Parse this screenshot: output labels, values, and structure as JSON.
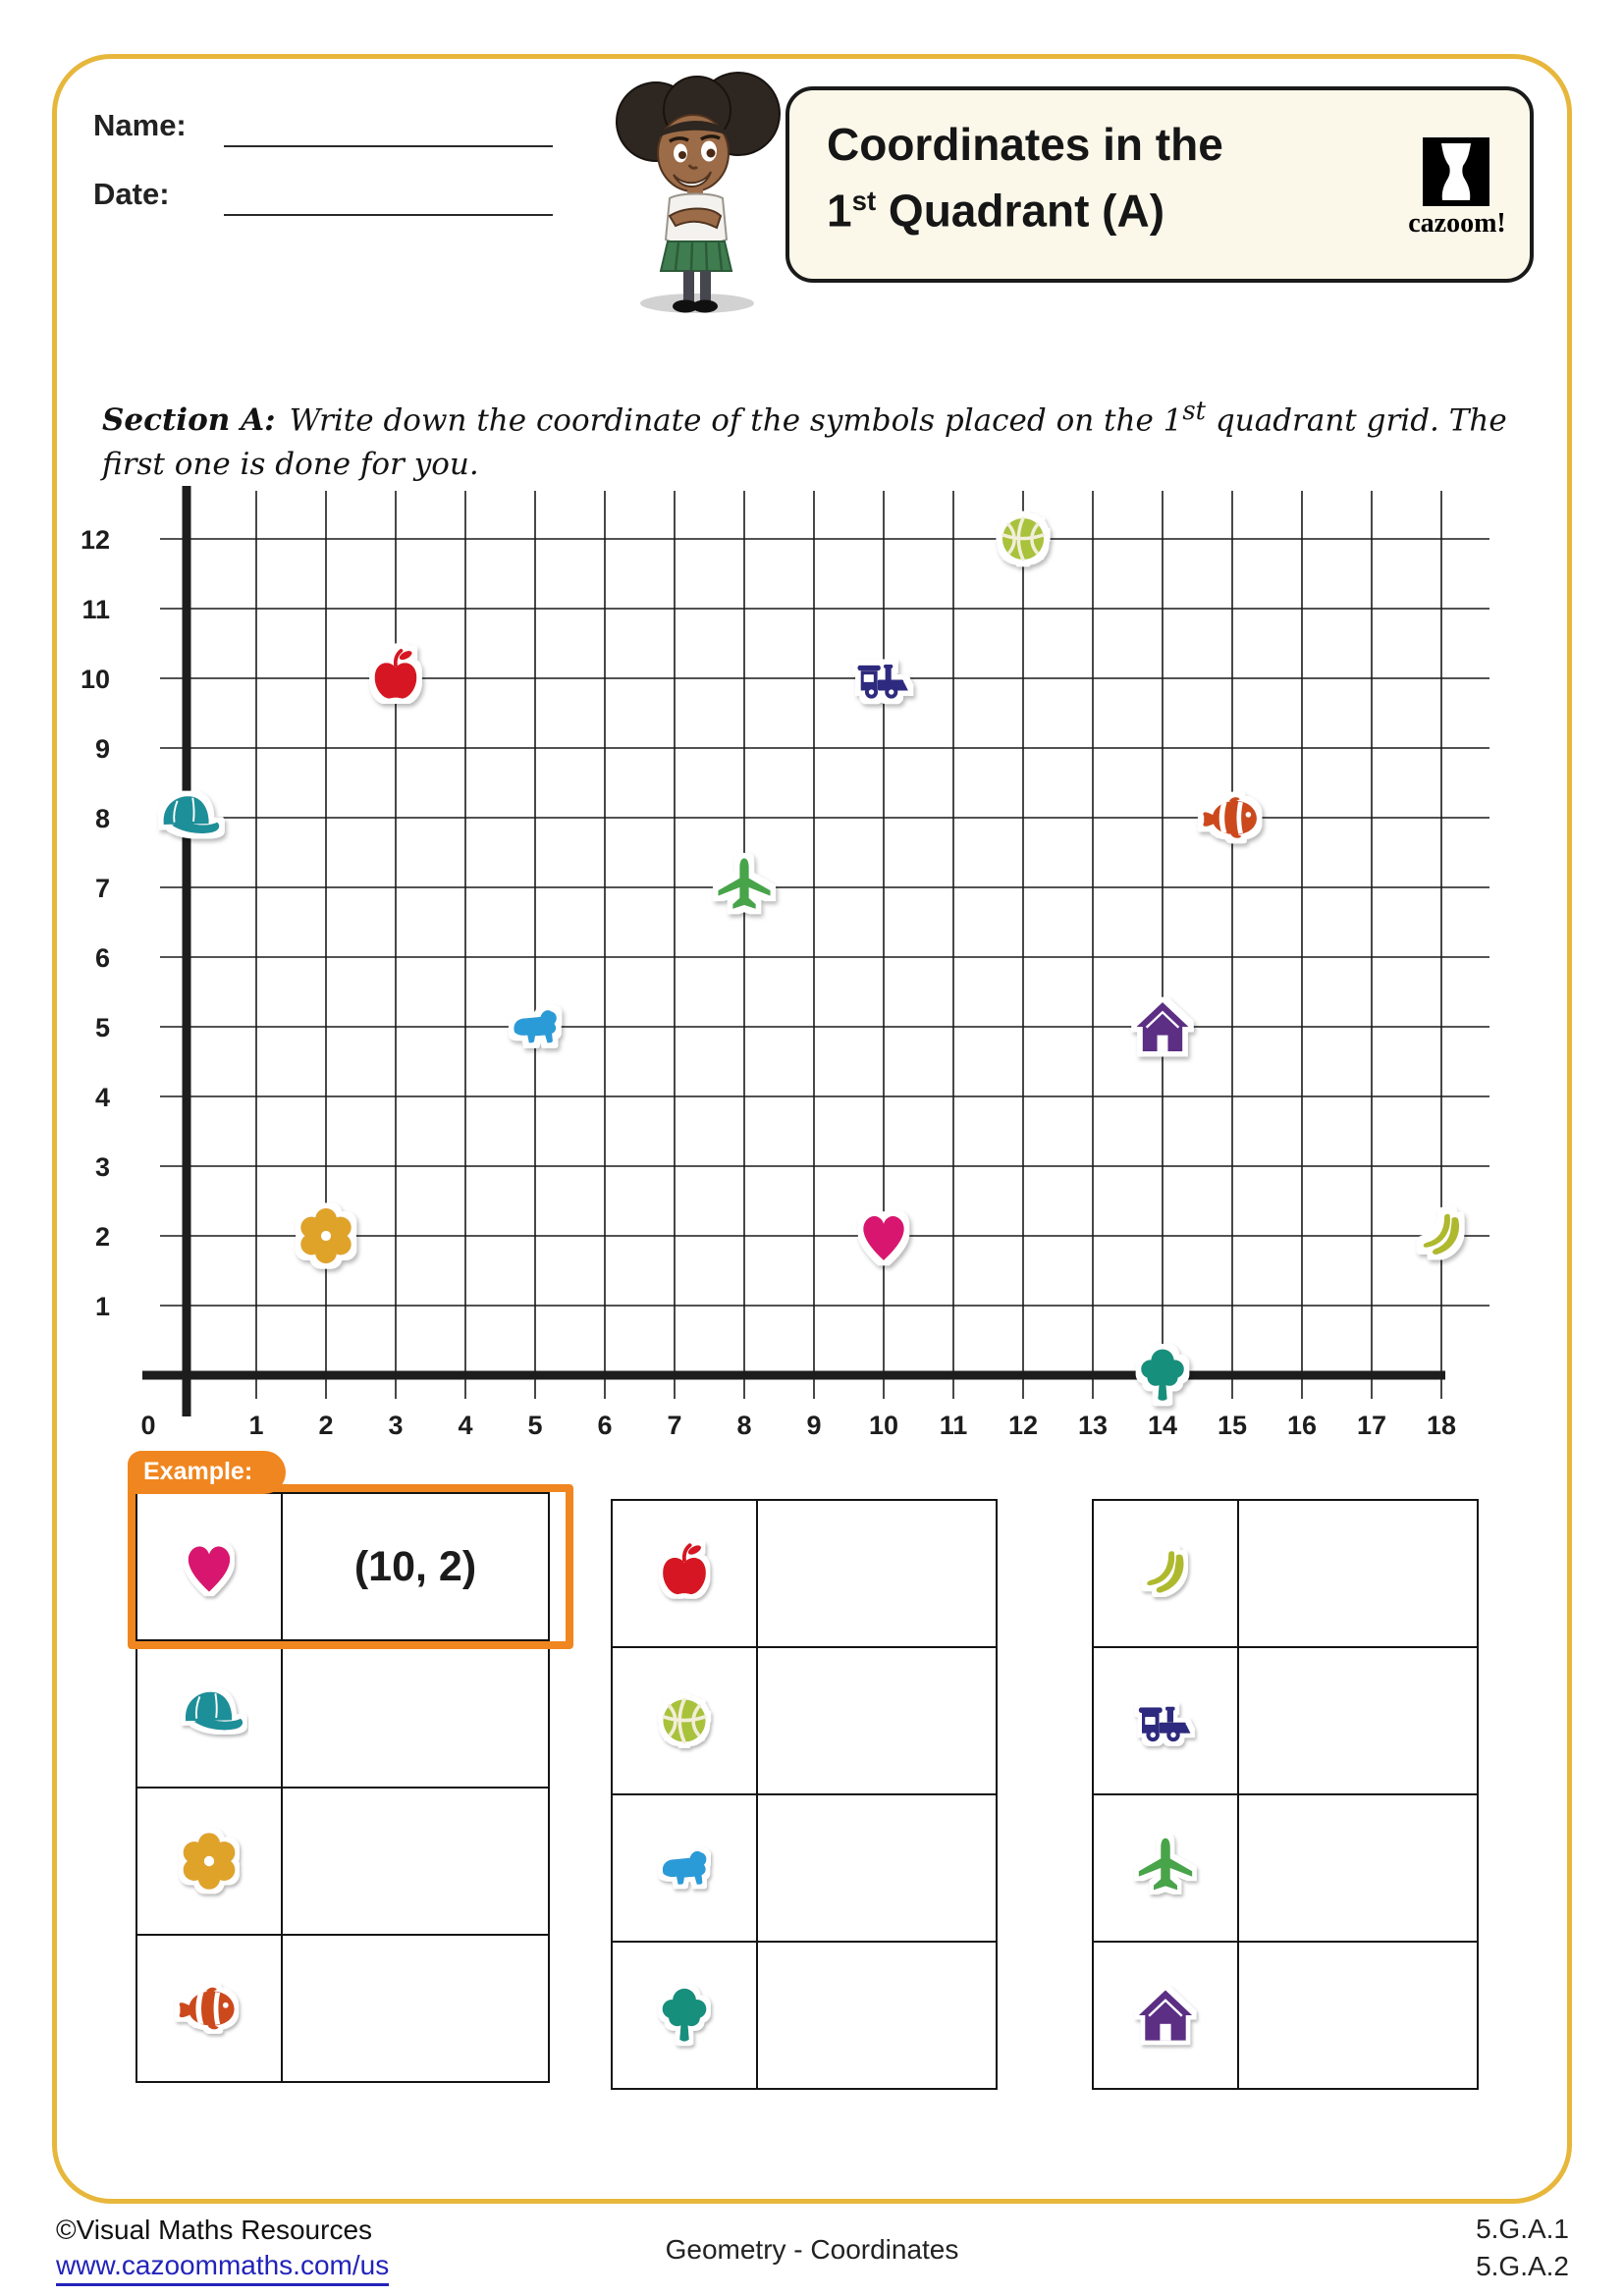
{
  "page": {
    "border_color": "#E7B73C",
    "name_label": "Name:",
    "date_label": "Date:",
    "title": {
      "line1": "Coordinates in the",
      "line2_base": "1",
      "line2_sup": "st",
      "line2_rest": " Quadrant (A)"
    },
    "logo": {
      "text": "cazoom!"
    }
  },
  "section_a": {
    "label": "Section A:",
    "text_1": "Write down the coordinate of the symbols placed on the 1",
    "sup": "st",
    "text_2": " quadrant grid. The first one is done for you."
  },
  "chart_data": {
    "type": "scatter",
    "title": "First quadrant coordinate grid with symbols",
    "xlim": [
      0,
      18
    ],
    "ylim": [
      0,
      12
    ],
    "x_ticks": [
      0,
      1,
      2,
      3,
      4,
      5,
      6,
      7,
      8,
      9,
      10,
      11,
      12,
      13,
      14,
      15,
      16,
      17,
      18
    ],
    "y_ticks": [
      1,
      2,
      3,
      4,
      5,
      6,
      7,
      8,
      9,
      10,
      11,
      12
    ],
    "grid": true,
    "points": [
      {
        "symbol": "cap",
        "x": 0,
        "y": 8,
        "color": "#1E8F99"
      },
      {
        "symbol": "flower",
        "x": 2,
        "y": 2,
        "color": "#DFA32B"
      },
      {
        "symbol": "apple",
        "x": 3,
        "y": 10,
        "color": "#D61920"
      },
      {
        "symbol": "bear",
        "x": 5,
        "y": 5,
        "color": "#2B9BD7"
      },
      {
        "symbol": "airplane",
        "x": 8,
        "y": 7,
        "color": "#47A449"
      },
      {
        "symbol": "train",
        "x": 10,
        "y": 10,
        "color": "#2D2B7F"
      },
      {
        "symbol": "heart",
        "x": 10,
        "y": 2,
        "color": "#D8176F"
      },
      {
        "symbol": "basketball",
        "x": 12,
        "y": 12,
        "color": "#A8C23A"
      },
      {
        "symbol": "house",
        "x": 14,
        "y": 5,
        "color": "#5C2D84"
      },
      {
        "symbol": "tree",
        "x": 14,
        "y": 0,
        "color": "#178F7D"
      },
      {
        "symbol": "fish",
        "x": 15,
        "y": 8,
        "color": "#CC4A1E"
      },
      {
        "symbol": "bananas",
        "x": 18,
        "y": 2,
        "color": "#AFB92E"
      }
    ]
  },
  "example": {
    "tab_label": "Example:",
    "answer": "(10, 2)"
  },
  "tables": [
    {
      "rows": [
        {
          "symbol": "heart",
          "answer": "(10, 2)",
          "is_example": true
        },
        {
          "symbol": "cap",
          "answer": ""
        },
        {
          "symbol": "flower",
          "answer": ""
        },
        {
          "symbol": "fish",
          "answer": ""
        }
      ]
    },
    {
      "rows": [
        {
          "symbol": "apple",
          "answer": ""
        },
        {
          "symbol": "basketball",
          "answer": ""
        },
        {
          "symbol": "bear",
          "answer": ""
        },
        {
          "symbol": "tree",
          "answer": ""
        }
      ]
    },
    {
      "rows": [
        {
          "symbol": "bananas",
          "answer": ""
        },
        {
          "symbol": "train",
          "answer": ""
        },
        {
          "symbol": "airplane",
          "answer": ""
        },
        {
          "symbol": "house",
          "answer": ""
        }
      ]
    }
  ],
  "footer": {
    "copyright": "©Visual Maths Resources",
    "url": "www.cazoommaths.com/us",
    "center": "Geometry - Coordinates",
    "standards": [
      "5.G.A.1",
      "5.G.A.2"
    ]
  }
}
